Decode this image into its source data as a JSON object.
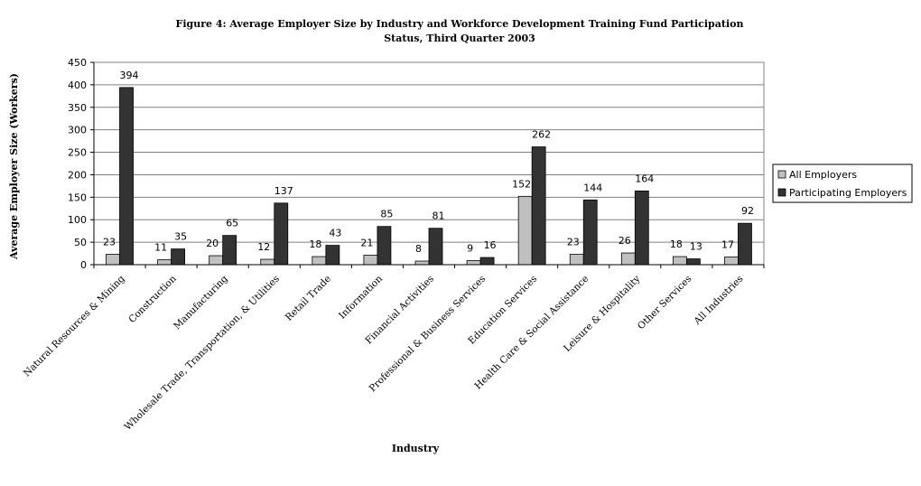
{
  "chart_data": {
    "type": "bar",
    "title_line1": "Figure 4: Average Employer Size by Industry and Workforce Development Training Fund Participation",
    "title_line2": "Status, Third Quarter 2003",
    "xlabel": "Industry",
    "ylabel": "Average Employer Size (Workers)",
    "ylim": [
      0,
      450
    ],
    "yticks": [
      "0",
      "50",
      "100",
      "150",
      "200",
      "250",
      "300",
      "350",
      "400",
      "450"
    ],
    "ytick_values": [
      0,
      50,
      100,
      150,
      200,
      250,
      300,
      350,
      400,
      450
    ],
    "grid": true,
    "legend_position": "right",
    "categories": [
      "Natural Resources & Mining",
      "Construction",
      "Manufacturing",
      "Wholesale Trade, Transportation, & Utilities",
      "Retail Trade",
      "Information",
      "Financial Activities",
      "Professional & Business Services",
      "Education Services",
      "Health Care & Social Assistance",
      "Leisure & Hospitality",
      "Other Services",
      "All Industries"
    ],
    "series": [
      {
        "name": "All Employers",
        "color": "#c0c0c0",
        "values": [
          23,
          11,
          20,
          12,
          18,
          21,
          8,
          9,
          152,
          23,
          26,
          18,
          17
        ]
      },
      {
        "name": "Participating Employers",
        "color": "#333333",
        "values": [
          394,
          35,
          65,
          137,
          43,
          85,
          81,
          16,
          262,
          144,
          164,
          13,
          92
        ]
      }
    ]
  }
}
